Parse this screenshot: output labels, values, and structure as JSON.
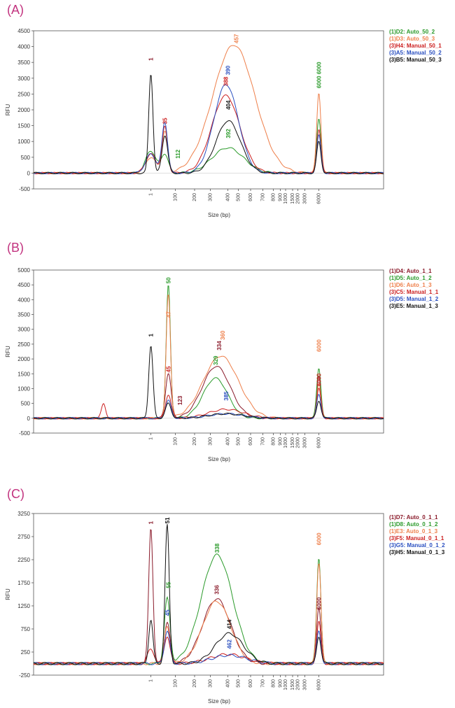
{
  "colors": {
    "black": "#111111",
    "red": "#cc2020",
    "green": "#2a9a2a",
    "blue": "#2a4fc0",
    "orange": "#ee7f4a",
    "darkred": "#8a1a2a",
    "panel_label": "#c2337f"
  },
  "x_axis_label": "Size (bp)",
  "y_axis_label": "RFU",
  "x_ticks": [
    "1",
    "100",
    "200",
    "300",
    "400",
    "500",
    "600",
    "700",
    "800",
    "900",
    "1000",
    "1500",
    "2000",
    "3000",
    "6000"
  ],
  "chart_data": [
    {
      "type": "line",
      "panel_label": "(A)",
      "xlabel": "Size (bp)",
      "ylabel": "RFU",
      "x_scale": "nonlinear (electropherogram)",
      "ylim": [
        -500,
        4500
      ],
      "y_ticks": [
        -500,
        0,
        500,
        1000,
        1500,
        2000,
        2500,
        3000,
        3500,
        4000,
        4500
      ],
      "legend_position": "right",
      "legend": [
        {
          "label": "(1)D2: Auto_50_2",
          "color": "green"
        },
        {
          "label": "(1)D3: Auto_50_3",
          "color": "orange"
        },
        {
          "label": "(3)H4: Manual_50_1",
          "color": "red"
        },
        {
          "label": "(3)A5: Manual_50_2",
          "color": "blue"
        },
        {
          "label": "(3)B5: Manual_50_3",
          "color": "black"
        }
      ],
      "series": [
        {
          "name": "(1)D2: Auto_50_2",
          "color": "green",
          "peaks": [
            {
              "x": 1,
              "y": 700,
              "w": 0.015
            },
            {
              "x": 35,
              "y": 600,
              "w": 0.01
            },
            {
              "x": 400,
              "y": 800,
              "w": 0.045
            },
            {
              "x": 6000,
              "y": 1700,
              "w": 0.006
            }
          ]
        },
        {
          "name": "(1)D3: Auto_50_3",
          "color": "orange",
          "peaks": [
            {
              "x": 1,
              "y": 500,
              "w": 0.015
            },
            {
              "x": 35,
              "y": 1300,
              "w": 0.008
            },
            {
              "x": 457,
              "y": 4050,
              "w": 0.06
            },
            {
              "x": 6000,
              "y": 2550,
              "w": 0.006
            }
          ]
        },
        {
          "name": "(3)H4: Manual_50_1",
          "color": "red",
          "peaks": [
            {
              "x": 1,
              "y": 600,
              "w": 0.015
            },
            {
              "x": 35,
              "y": 1450,
              "w": 0.008
            },
            {
              "x": 388,
              "y": 2450,
              "w": 0.04
            },
            {
              "x": 6000,
              "y": 1400,
              "w": 0.006
            }
          ]
        },
        {
          "name": "(3)A5: Manual_50_2",
          "color": "blue",
          "peaks": [
            {
              "x": 1,
              "y": 600,
              "w": 0.015
            },
            {
              "x": 35,
              "y": 1600,
              "w": 0.008
            },
            {
              "x": 390,
              "y": 2800,
              "w": 0.035
            },
            {
              "x": 6000,
              "y": 1200,
              "w": 0.006
            }
          ]
        },
        {
          "name": "(3)B5: Manual_50_3",
          "color": "black",
          "peaks": [
            {
              "x": 1,
              "y": 3150,
              "w": 0.006
            },
            {
              "x": 35,
              "y": 1200,
              "w": 0.008
            },
            {
              "x": 404,
              "y": 1650,
              "w": 0.035
            },
            {
              "x": 6000,
              "y": 1000,
              "w": 0.006
            }
          ]
        }
      ],
      "annotations": [
        {
          "text": "1",
          "x": 1,
          "y": 3600,
          "color": "darkred"
        },
        {
          "text": "35",
          "x": 35,
          "y": 1650,
          "color": "red"
        },
        {
          "text": "112",
          "x": 112,
          "y": 600,
          "color": "green"
        },
        {
          "text": "388",
          "x": 388,
          "y": 2900,
          "color": "red"
        },
        {
          "text": "390",
          "x": 400,
          "y": 3250,
          "color": "blue"
        },
        {
          "text": "404",
          "x": 404,
          "y": 2150,
          "color": "black"
        },
        {
          "text": "392",
          "x": 404,
          "y": 1250,
          "color": "green"
        },
        {
          "text": "457",
          "x": 480,
          "y": 4250,
          "color": "orange"
        },
        {
          "text": "6000 6000",
          "x": 6000,
          "y": 3100,
          "color": "green"
        }
      ]
    },
    {
      "type": "line",
      "panel_label": "(B)",
      "xlabel": "Size (bp)",
      "ylabel": "RFU",
      "x_scale": "nonlinear (electropherogram)",
      "ylim": [
        -500,
        5000
      ],
      "y_ticks": [
        -500,
        0,
        500,
        1000,
        1500,
        2000,
        2500,
        3000,
        3500,
        4000,
        4500,
        5000
      ],
      "legend_position": "right",
      "legend": [
        {
          "label": "(1)D4: Auto_1_1",
          "color": "darkred"
        },
        {
          "label": "(1)D5: Auto_1_2",
          "color": "green"
        },
        {
          "label": "(1)D6: Auto_1_3",
          "color": "orange"
        },
        {
          "label": "(3)C5: Manual_1_1",
          "color": "red"
        },
        {
          "label": "(3)D5: Manual_1_2",
          "color": "blue"
        },
        {
          "label": "(3)E5: Manual_1_3",
          "color": "black"
        }
      ],
      "series": [
        {
          "name": "(1)D4: Auto_1_1",
          "color": "darkred",
          "peaks": [
            {
              "x": 50,
              "y": 1500,
              "w": 0.008
            },
            {
              "x": 334,
              "y": 1750,
              "w": 0.04
            },
            {
              "x": 6000,
              "y": 1400,
              "w": 0.006
            }
          ]
        },
        {
          "name": "(1)D5: Auto_1_2",
          "color": "green",
          "peaks": [
            {
              "x": 50,
              "y": 4500,
              "w": 0.006
            },
            {
              "x": 329,
              "y": 1350,
              "w": 0.035
            },
            {
              "x": 6000,
              "y": 1700,
              "w": 0.006
            }
          ]
        },
        {
          "name": "(1)D6: Auto_1_3",
          "color": "orange",
          "peaks": [
            {
              "x": 50,
              "y": 4200,
              "w": 0.006
            },
            {
              "x": 360,
              "y": 2100,
              "w": 0.05
            },
            {
              "x": 6000,
              "y": 1200,
              "w": 0.006
            }
          ]
        },
        {
          "name": "(3)C5: Manual_1_1",
          "color": "red",
          "peaks": [
            {
              "x": -15,
              "y": 500,
              "w": 0.006
            },
            {
              "x": 50,
              "y": 800,
              "w": 0.008
            },
            {
              "x": 390,
              "y": 300,
              "w": 0.05
            },
            {
              "x": 6000,
              "y": 1000,
              "w": 0.006
            }
          ]
        },
        {
          "name": "(3)D5: Manual_1_2",
          "color": "blue",
          "peaks": [
            {
              "x": 50,
              "y": 600,
              "w": 0.008
            },
            {
              "x": 390,
              "y": 150,
              "w": 0.05
            },
            {
              "x": 6000,
              "y": 800,
              "w": 0.006
            }
          ]
        },
        {
          "name": "(3)E5: Manual_1_3",
          "color": "black",
          "peaks": [
            {
              "x": 1,
              "y": 2450,
              "w": 0.006
            },
            {
              "x": 50,
              "y": 500,
              "w": 0.008
            },
            {
              "x": 390,
              "y": 150,
              "w": 0.05
            },
            {
              "x": 6000,
              "y": 600,
              "w": 0.006
            }
          ]
        }
      ],
      "annotations": [
        {
          "text": "1",
          "x": 1,
          "y": 2800,
          "color": "black"
        },
        {
          "text": "50",
          "x": 50,
          "y": 4650,
          "color": "green"
        },
        {
          "text": "47",
          "x": 50,
          "y": 3500,
          "color": "orange"
        },
        {
          "text": "45",
          "x": 50,
          "y": 1650,
          "color": "red"
        },
        {
          "text": "123",
          "x": 123,
          "y": 600,
          "color": "darkred"
        },
        {
          "text": "329",
          "x": 329,
          "y": 1950,
          "color": "green"
        },
        {
          "text": "334",
          "x": 350,
          "y": 2450,
          "color": "darkred"
        },
        {
          "text": "360",
          "x": 370,
          "y": 2800,
          "color": "orange"
        },
        {
          "text": "385",
          "x": 390,
          "y": 750,
          "color": "blue"
        },
        {
          "text": "6000",
          "x": 6000,
          "y": 2450,
          "color": "orange"
        },
        {
          "text": "6000",
          "x": 6000,
          "y": 1300,
          "color": "red"
        }
      ]
    },
    {
      "type": "line",
      "panel_label": "(C)",
      "xlabel": "Size (bp)",
      "ylabel": "RFU",
      "x_scale": "nonlinear (electropherogram)",
      "ylim": [
        -250,
        3250
      ],
      "y_ticks": [
        -250,
        250,
        750,
        1250,
        1750,
        2250,
        2750,
        3250
      ],
      "legend_position": "right",
      "legend": [
        {
          "label": "(1)D7: Auto_0_1_1",
          "color": "darkred"
        },
        {
          "label": "(1)D8: Auto_0_1_2",
          "color": "green"
        },
        {
          "label": "(1)E3: Auto_0_1_3",
          "color": "orange"
        },
        {
          "label": "(3)F5: Manual_0_1_1",
          "color": "red"
        },
        {
          "label": "(3)G5: Manual_0_1_2",
          "color": "blue"
        },
        {
          "label": "(3)H5: Manual_0_1_3",
          "color": "black"
        }
      ],
      "series": [
        {
          "name": "(1)D7: Auto_0_1_1",
          "color": "darkred",
          "peaks": [
            {
              "x": 1,
              "y": 2950,
              "w": 0.006
            },
            {
              "x": 45,
              "y": 900,
              "w": 0.008
            },
            {
              "x": 336,
              "y": 1400,
              "w": 0.04
            },
            {
              "x": 6000,
              "y": 1200,
              "w": 0.006
            }
          ]
        },
        {
          "name": "(1)D8: Auto_0_1_2",
          "color": "green",
          "peaks": [
            {
              "x": 45,
              "y": 1400,
              "w": 0.008
            },
            {
              "x": 338,
              "y": 2350,
              "w": 0.045
            },
            {
              "x": 6000,
              "y": 2300,
              "w": 0.006
            }
          ]
        },
        {
          "name": "(1)E3: Auto_0_1_3",
          "color": "orange",
          "peaks": [
            {
              "x": 45,
              "y": 800,
              "w": 0.008
            },
            {
              "x": 336,
              "y": 1350,
              "w": 0.04
            },
            {
              "x": 6000,
              "y": 2200,
              "w": 0.006
            }
          ]
        },
        {
          "name": "(3)F5: Manual_0_1_1",
          "color": "red",
          "peaks": [
            {
              "x": 1,
              "y": 300,
              "w": 0.01
            },
            {
              "x": 45,
              "y": 600,
              "w": 0.008
            },
            {
              "x": 400,
              "y": 200,
              "w": 0.05
            },
            {
              "x": 6000,
              "y": 900,
              "w": 0.006
            }
          ]
        },
        {
          "name": "(3)G5: Manual_0_1_2",
          "color": "blue",
          "peaks": [
            {
              "x": 45,
              "y": 700,
              "w": 0.008
            },
            {
              "x": 414,
              "y": 180,
              "w": 0.05
            },
            {
              "x": 6000,
              "y": 700,
              "w": 0.006
            }
          ]
        },
        {
          "name": "(3)H5: Manual_0_1_3",
          "color": "black",
          "peaks": [
            {
              "x": 1,
              "y": 950,
              "w": 0.006
            },
            {
              "x": 45,
              "y": 3000,
              "w": 0.006
            },
            {
              "x": 414,
              "y": 650,
              "w": 0.04
            },
            {
              "x": 6000,
              "y": 600,
              "w": 0.006
            }
          ]
        }
      ],
      "annotations": [
        {
          "text": "1",
          "x": 1,
          "y": 3050,
          "color": "darkred"
        },
        {
          "text": "51",
          "x": 45,
          "y": 3100,
          "color": "black"
        },
        {
          "text": "55",
          "x": 50,
          "y": 1700,
          "color": "green"
        },
        {
          "text": "45",
          "x": 45,
          "y": 1100,
          "color": "blue"
        },
        {
          "text": "338",
          "x": 338,
          "y": 2500,
          "color": "green"
        },
        {
          "text": "336",
          "x": 336,
          "y": 1600,
          "color": "darkred"
        },
        {
          "text": "414",
          "x": 414,
          "y": 850,
          "color": "black"
        },
        {
          "text": "462",
          "x": 414,
          "y": 420,
          "color": "blue"
        },
        {
          "text": "6000",
          "x": 6000,
          "y": 2700,
          "color": "orange"
        },
        {
          "text": "6000",
          "x": 6000,
          "y": 1300,
          "color": "darkred"
        }
      ]
    }
  ]
}
